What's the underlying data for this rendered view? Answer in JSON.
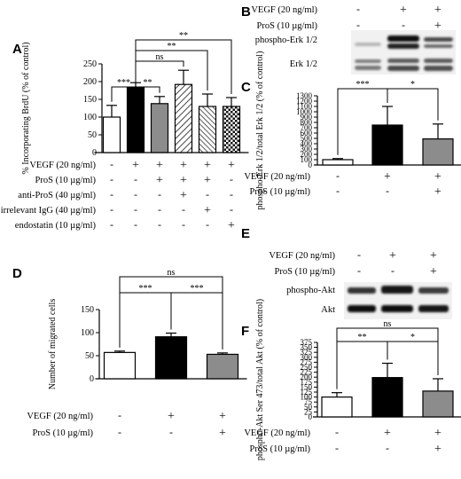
{
  "chart_data": [
    {
      "panel": "A",
      "type": "bar",
      "ylabel": "% Incorporating BrdU (% of control)",
      "ylim": [
        0,
        250
      ],
      "yticks": [
        0,
        50,
        100,
        150,
        200,
        250
      ],
      "values": [
        100,
        184,
        138,
        192,
        130,
        130
      ],
      "errors": [
        33,
        13,
        20,
        40,
        35,
        25
      ],
      "fills": [
        "white",
        "black",
        "gray",
        "diag",
        "diag2",
        "check"
      ],
      "conditions": [
        {
          "label": "VEGF (20 ng/ml)",
          "marks": [
            "-",
            "+",
            "+",
            "+",
            "+",
            "+"
          ]
        },
        {
          "label": "ProS (10 µg/ml)",
          "marks": [
            "-",
            "-",
            "+",
            "+",
            "+",
            "-"
          ]
        },
        {
          "label": "anti-ProS (40 µg/ml)",
          "marks": [
            "-",
            "-",
            "-",
            "+",
            "-",
            "-"
          ]
        },
        {
          "label": "irrelevant IgG (40 µg/ml)",
          "marks": [
            "-",
            "-",
            "-",
            "-",
            "+",
            "-"
          ]
        },
        {
          "label": "endostatin (10 µg/ml)",
          "marks": [
            "-",
            "-",
            "-",
            "-",
            "-",
            "+"
          ]
        }
      ],
      "brackets": [
        {
          "from": 0,
          "to": 1,
          "label": "***"
        },
        {
          "from": 1,
          "to": 2,
          "label": "**"
        },
        {
          "from": 1,
          "to": 3,
          "label": "ns"
        },
        {
          "from": 1,
          "to": 4,
          "label": "**"
        },
        {
          "from": 1,
          "to": 5,
          "label": "**"
        }
      ]
    },
    {
      "panel": "C",
      "type": "bar",
      "ylabel": "phospho-Erk 1/2/total Erk 1/2 (% of control)",
      "ylim": [
        0,
        1300
      ],
      "yticks": [
        0,
        100,
        200,
        300,
        400,
        500,
        600,
        700,
        800,
        900,
        1000,
        1100,
        1200,
        1300
      ],
      "values": [
        100,
        750,
        490
      ],
      "errors": [
        20,
        350,
        280
      ],
      "fills": [
        "white",
        "black",
        "gray"
      ],
      "conditions": [
        {
          "label": "VEGF (20 ng/ml)",
          "marks": [
            "-",
            "+",
            "+"
          ]
        },
        {
          "label": "ProS (10 µg/ml)",
          "marks": [
            "-",
            "-",
            "+"
          ]
        }
      ],
      "brackets": [
        {
          "from": 0,
          "to": 1,
          "label": "***"
        },
        {
          "from": 1,
          "to": 2,
          "label": "*"
        }
      ]
    },
    {
      "panel": "D",
      "type": "bar",
      "ylabel": "Number of migrated cells",
      "ylim": [
        0,
        150
      ],
      "yticks": [
        0,
        50,
        100,
        150
      ],
      "values": [
        57,
        91,
        53
      ],
      "errors": [
        3,
        8,
        3
      ],
      "fills": [
        "white",
        "black",
        "gray"
      ],
      "conditions": [
        {
          "label": "VEGF (20 ng/ml)",
          "marks": [
            "-",
            "+",
            "+"
          ]
        },
        {
          "label": "ProS (10 µg/ml)",
          "marks": [
            "-",
            "-",
            "+"
          ]
        }
      ],
      "brackets": [
        {
          "from": 0,
          "to": 1,
          "label": "***"
        },
        {
          "from": 1,
          "to": 2,
          "label": "***"
        },
        {
          "from": 0,
          "to": 2,
          "label": "ns"
        }
      ]
    },
    {
      "panel": "F",
      "type": "bar",
      "ylabel": "phospho-Akt Ser 473/total Akt (% of control)",
      "ylim": [
        0,
        375
      ],
      "yticks": [
        0,
        25,
        50,
        75,
        100,
        125,
        150,
        175,
        200,
        225,
        250,
        275,
        300,
        325,
        350,
        375
      ],
      "values": [
        100,
        198,
        130
      ],
      "errors": [
        22,
        72,
        62
      ],
      "fills": [
        "white",
        "black",
        "gray"
      ],
      "conditions": [
        {
          "label": "VEGF (20 ng/ml)",
          "marks": [
            "-",
            "+",
            "+"
          ]
        },
        {
          "label": "ProS (10 µg/ml)",
          "marks": [
            "-",
            "-",
            "+"
          ]
        }
      ],
      "brackets": [
        {
          "from": 0,
          "to": 1,
          "label": "**"
        },
        {
          "from": 1,
          "to": 2,
          "label": "*"
        },
        {
          "from": 0,
          "to": 2,
          "label": "ns"
        }
      ]
    }
  ],
  "blots": {
    "B": {
      "panel": "B",
      "conditions": [
        {
          "label": "VEGF (20 ng/ml)",
          "marks": [
            "-",
            "+",
            "+"
          ]
        },
        {
          "label": "ProS (10 µg/ml)",
          "marks": [
            "-",
            "-",
            "+"
          ]
        }
      ],
      "bands": [
        "phospho-Erk 1/2",
        "Erk 1/2"
      ]
    },
    "E": {
      "panel": "E",
      "conditions": [
        {
          "label": "VEGF (20 ng/ml)",
          "marks": [
            "-",
            "+",
            "+"
          ]
        },
        {
          "label": "ProS (10 µg/ml)",
          "marks": [
            "-",
            "-",
            "+"
          ]
        }
      ],
      "bands": [
        "phospho-Akt",
        "Akt"
      ]
    }
  }
}
